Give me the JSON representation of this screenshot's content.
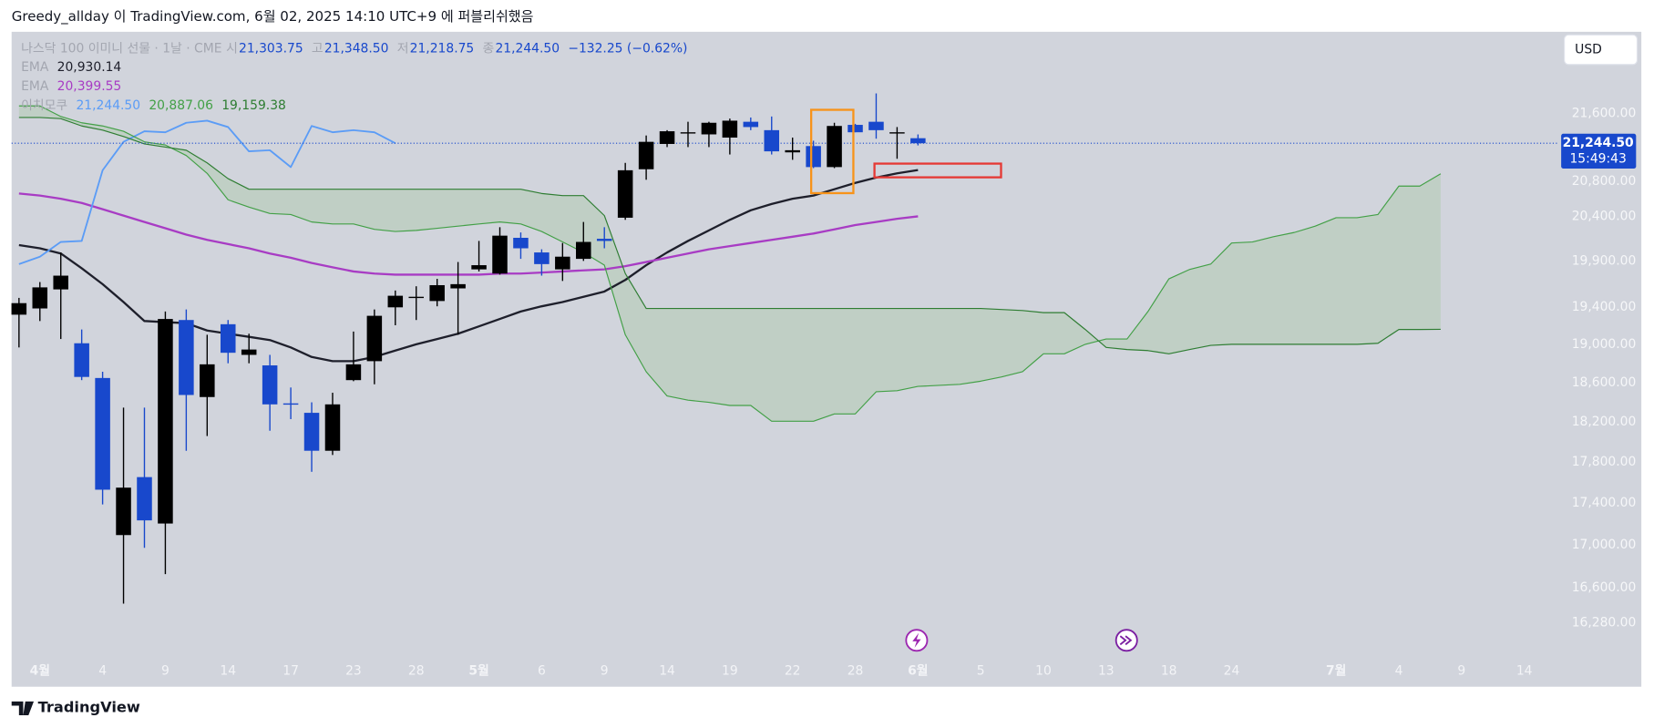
{
  "header": "Greedy_allday 이 TradingView.com, 6월 02, 2025 14:10 UTC+9 에 퍼블리쉬했음",
  "footer": "TradingView",
  "currency_button": "USD",
  "chart_data": {
    "type": "candlestick",
    "log_scale": true,
    "grid": false,
    "ylim": [
      16000,
      22600
    ],
    "yticks": [
      {
        "value": 21600,
        "label": "21,600.00"
      },
      {
        "value": 20800,
        "label": "20,800.00"
      },
      {
        "value": 20400,
        "label": "20,400.00"
      },
      {
        "value": 19900,
        "label": "19,900.00"
      },
      {
        "value": 19400,
        "label": "19,400.00"
      },
      {
        "value": 19000,
        "label": "19,000.00"
      },
      {
        "value": 18600,
        "label": "18,600.00"
      },
      {
        "value": 18200,
        "label": "18,200.00"
      },
      {
        "value": 17800,
        "label": "17,800.00"
      },
      {
        "value": 17400,
        "label": "17,400.00"
      },
      {
        "value": 17000,
        "label": "17,000.00"
      },
      {
        "value": 16600,
        "label": "16,600.00"
      },
      {
        "value": 16280,
        "label": "16,280.00"
      }
    ],
    "categories": [
      null,
      "4월",
      null,
      null,
      "4",
      null,
      null,
      "9",
      null,
      null,
      "14",
      null,
      null,
      "17",
      null,
      null,
      "23",
      null,
      null,
      "28",
      null,
      null,
      "5월",
      null,
      null,
      "6",
      null,
      null,
      "9",
      null,
      null,
      "14",
      null,
      null,
      "19",
      null,
      null,
      "22",
      null,
      null,
      "28",
      null,
      null,
      "6월",
      null,
      null,
      "5",
      null,
      null,
      "10",
      null,
      null,
      "13",
      null,
      null,
      "18",
      null,
      null,
      "24",
      null,
      null,
      null,
      null,
      "7월",
      null,
      null,
      "4",
      null,
      null,
      "9",
      null,
      null,
      "14"
    ],
    "up_color": "#000000",
    "down_color": "#1848cc",
    "candles": {
      "open": [
        19316,
        19383,
        19589,
        19012,
        18649,
        17092,
        17651,
        17202,
        19259,
        18453,
        19214,
        18890,
        18780,
        18388,
        18292,
        17911,
        18627,
        18824,
        19395,
        19497,
        19463,
        19600,
        19808,
        19762,
        20158,
        19995,
        19808,
        19924,
        20147,
        20384,
        20940,
        21236,
        21361,
        21349,
        21311,
        21499,
        21399,
        21137,
        21211,
        20965,
        21462,
        21499,
        21361,
        21303.75,
        null,
        null,
        null,
        null,
        null,
        null,
        null,
        null,
        null,
        null,
        null,
        null,
        null,
        null,
        null,
        null,
        null,
        null,
        null,
        null,
        null,
        null,
        null,
        null,
        null,
        null,
        null,
        null,
        null
      ],
      "high": [
        19497,
        19669,
        19995,
        19158,
        18714,
        18345,
        18345,
        19350,
        19372,
        19102,
        19259,
        19113,
        18890,
        18551,
        18399,
        18497,
        19136,
        19372,
        19577,
        19623,
        19704,
        19889,
        20123,
        20277,
        20218,
        20030,
        20100,
        20336,
        20277,
        21014,
        21336,
        21399,
        21499,
        21499,
        21537,
        21550,
        21562,
        21311,
        21274,
        21487,
        21474,
        21840,
        21436,
        21348.5,
        null,
        null,
        null,
        null,
        null,
        null,
        null,
        null,
        null,
        null,
        null,
        null,
        null,
        null,
        null,
        null,
        null,
        null,
        null,
        null,
        null,
        null,
        null,
        null,
        null,
        null,
        null,
        null,
        null
      ],
      "low": [
        18968,
        19248,
        19057,
        18627,
        17385,
        16454,
        16972,
        16725,
        17911,
        18058,
        18802,
        18802,
        18111,
        18228,
        17703,
        17869,
        18616,
        18584,
        19203,
        19259,
        19406,
        19102,
        19785,
        19750,
        19924,
        19739,
        19681,
        19901,
        20041,
        20360,
        20818,
        21199,
        21199,
        21199,
        21112,
        21399,
        21112,
        21050,
        20953,
        20953,
        21374,
        21298,
        21062,
        21218.75,
        null,
        null,
        null,
        null,
        null,
        null,
        null,
        null,
        null,
        null,
        null,
        null,
        null,
        null,
        null,
        null,
        null,
        null,
        null,
        null,
        null,
        null,
        null,
        null,
        null,
        null,
        null,
        null,
        null
      ],
      "close": [
        19440,
        19611,
        19739,
        18660,
        17528,
        17548,
        17232,
        19270,
        18474,
        18791,
        18912,
        18946,
        18378,
        18378,
        17911,
        18378,
        18791,
        19304,
        19520,
        19509,
        19635,
        19646,
        19854,
        20182,
        20041,
        19866,
        19948,
        20112,
        20123,
        20928,
        21261,
        21386,
        21374,
        21487,
        21512,
        21436,
        21149,
        21162,
        20965,
        21449,
        21374,
        21399,
        21374,
        21244.5,
        null,
        null,
        null,
        null,
        null,
        null,
        null,
        null,
        null,
        null,
        null,
        null,
        null,
        null,
        null,
        null,
        null,
        null,
        null,
        null,
        null,
        null,
        null,
        null,
        null,
        null,
        null,
        null,
        null
      ]
    },
    "legend": {
      "symbol": "나스닥 100 이미니 선물 · 1날 · CME",
      "ohlc": [
        {
          "label": "시",
          "value": "21,303.75"
        },
        {
          "label": "고",
          "value": "21,348.50"
        },
        {
          "label": "저",
          "value": "21,218.75"
        },
        {
          "label": "종",
          "value": "21,244.50"
        }
      ],
      "change": "−132.25 (−0.62%)"
    },
    "price_label": {
      "value": 21244.5,
      "label": "21,244.50",
      "countdown": "15:49:43"
    },
    "indicators": [
      {
        "name": "EMA",
        "lines": [
          {
            "color": "#1e1f2b",
            "width": 2,
            "legend_value": "20,930.14",
            "values": [
              20077,
              20041,
              19983,
              19820,
              19646,
              19452,
              19248,
              19236,
              19225,
              19147,
              19113,
              19080,
              19046,
              18968,
              18868,
              18824,
              18824,
              18868,
              18935,
              19001,
              19057,
              19113,
              19191,
              19270,
              19350,
              19406,
              19452,
              19509,
              19566,
              19692,
              19854,
              19995,
              20123,
              20241,
              20360,
              20468,
              20540,
              20600,
              20636,
              20709,
              20782,
              20843,
              20892,
              20930.14,
              null,
              null,
              null,
              null,
              null,
              null,
              null,
              null,
              null,
              null,
              null,
              null,
              null,
              null,
              null,
              null,
              null,
              null,
              null,
              null,
              null,
              null,
              null,
              null,
              null,
              null,
              null,
              null,
              null
            ]
          }
        ]
      },
      {
        "name": "EMA",
        "lines": [
          {
            "color": "#a83cc4",
            "width": 2,
            "legend_value": "20,399.55",
            "values": [
              20660,
              20636,
              20600,
              20552,
              20480,
              20408,
              20336,
              20265,
              20194,
              20135,
              20088,
              20041,
              19983,
              19936,
              19878,
              19831,
              19785,
              19762,
              19750,
              19750,
              19750,
              19750,
              19750,
              19762,
              19762,
              19773,
              19785,
              19797,
              19808,
              19843,
              19889,
              19936,
              19983,
              20030,
              20065,
              20100,
              20135,
              20170,
              20206,
              20253,
              20301,
              20336,
              20372,
              20399.55,
              null,
              null,
              null,
              null,
              null,
              null,
              null,
              null,
              null,
              null,
              null,
              null,
              null,
              null,
              null,
              null,
              null,
              null,
              null,
              null,
              null,
              null,
              null,
              null,
              null,
              null,
              null,
              null,
              null
            ]
          }
        ]
      },
      {
        "name": "이치모쿠",
        "cloud_color": "#b9cdbd",
        "lines": [
          {
            "color": "#5b9cf6",
            "width": 1.6,
            "legend_value": "21,244.50",
            "values": [
              19866,
              19948,
              20112,
              20123,
              20928,
              21261,
              21386,
              21374,
              21487,
              21512,
              21436,
              21149,
              21162,
              20965,
              21449,
              21374,
              21399,
              21374,
              21244.5,
              null,
              null,
              null,
              null,
              null,
              null,
              null,
              null,
              null,
              null,
              null,
              null,
              null,
              null,
              null,
              null,
              null,
              null,
              null,
              null,
              null,
              null,
              null,
              null,
              null,
              null,
              null,
              null,
              null,
              null,
              null,
              null,
              null,
              null,
              null,
              null,
              null,
              null,
              null,
              null,
              null,
              null,
              null,
              null,
              null,
              null,
              null,
              null,
              null,
              null,
              null,
              null,
              null,
              null
            ]
          },
          {
            "color": "#43a047",
            "width": 1,
            "legend_value": "20,887.06",
            "values": [
              21689,
              21689,
              21562,
              21487,
              21449,
              21386,
              21261,
              21224,
              21100,
              20892,
              20588,
              20504,
              20432,
              20420,
              20336,
              20313,
              20313,
              20253,
              20229,
              20241,
              20265,
              20289,
              20313,
              20336,
              20313,
              20229,
              20112,
              19995,
              19854,
              19102,
              18714,
              18464,
              18421,
              18399,
              18367,
              18367,
              18207,
              18207,
              18207,
              18281,
              18281,
              18507,
              18518,
              18562,
              18573,
              18584,
              18616,
              18660,
              18714,
              18901,
              18901,
              19001,
              19057,
              19057,
              19350,
              19704,
              19808,
              19866,
              20100,
              20112,
              20170,
              20218,
              20289,
              20384,
              20384,
              20420,
              20745,
              20745,
              20887.06,
              null,
              null,
              null,
              null
            ]
          },
          {
            "color": "#2e7d32",
            "width": 1,
            "legend_value": "19,159.38",
            "values": [
              21550,
              21550,
              21537,
              21449,
              21399,
              21324,
              21236,
              21199,
              21162,
              21014,
              20831,
              20709,
              20709,
              20709,
              20709,
              20709,
              20709,
              20709,
              20709,
              20709,
              20709,
              20709,
              20709,
              20709,
              20709,
              20660,
              20636,
              20636,
              20408,
              19762,
              19383,
              19383,
              19383,
              19383,
              19383,
              19383,
              19383,
              19383,
              19383,
              19383,
              19383,
              19383,
              19383,
              19383,
              19383,
              19383,
              19383,
              19372,
              19361,
              19338,
              19338,
              19158,
              18968,
              18946,
              18935,
              18901,
              18946,
              18990,
              19001,
              19001,
              19001,
              19001,
              19001,
              19001,
              19001,
              19012,
              19158,
              19158,
              19159.38,
              null,
              null,
              null,
              null
            ]
          }
        ]
      }
    ]
  }
}
